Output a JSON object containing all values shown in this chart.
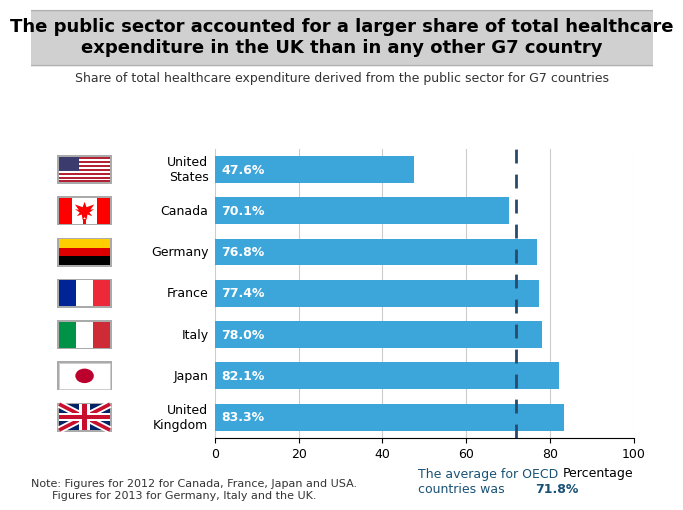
{
  "title": "The public sector accounted for a larger share of total healthcare\nexpenditure in the UK than in any other G7 country",
  "subtitle": "Share of total healthcare expenditure derived from the public sector for G7 countries",
  "countries": [
    "United\nStates",
    "Canada",
    "Germany",
    "France",
    "Italy",
    "Japan",
    "United\nKingdom"
  ],
  "values": [
    47.6,
    70.1,
    76.8,
    77.4,
    78.0,
    82.1,
    83.3
  ],
  "bar_color": "#3ca5d9",
  "bar_text_color": "#FFFFFF",
  "xlim": [
    0,
    100
  ],
  "xticks": [
    0,
    20,
    40,
    60,
    80,
    100
  ],
  "xlabel": "Percentage",
  "oecd_avg": 71.8,
  "oecd_line_color": "#2a4a6b",
  "oecd_label": "The average for OECD\ncountries was ",
  "oecd_label_bold": "71.8%",
  "oecd_label_color": "#1a5276",
  "note": "Note: Figures for 2012 for Canada, France, Japan and USA.\n      Figures for 2013 for Germany, Italy and the UK.",
  "title_bg_color": "#d0d0d0",
  "title_fontsize": 13,
  "subtitle_fontsize": 9,
  "bar_label_fontsize": 9,
  "note_fontsize": 8,
  "axis_label_fontsize": 9,
  "grid_color": "#cccccc",
  "background_color": "#ffffff"
}
